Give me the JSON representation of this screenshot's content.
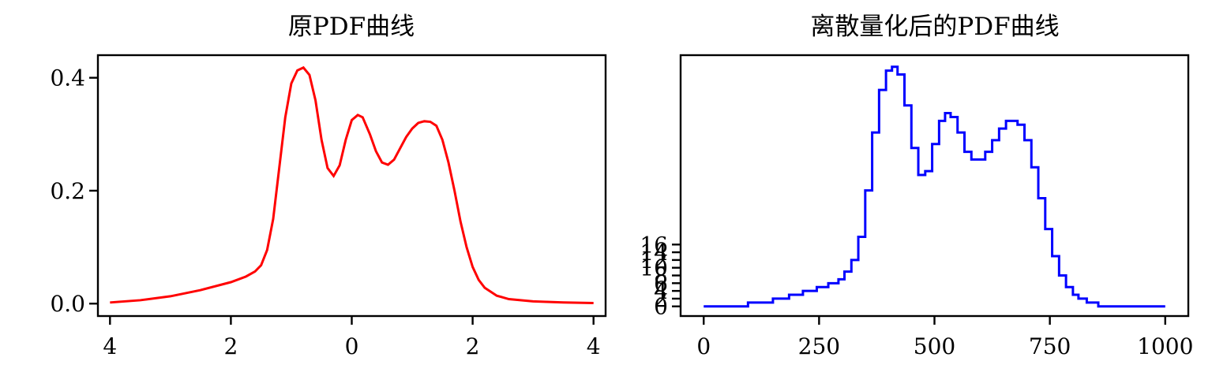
{
  "chart_data": [
    {
      "type": "line",
      "title": "原PDF曲线",
      "line_color": "#ff0000",
      "xlim": [
        -4.2,
        4.2
      ],
      "ylim": [
        -0.022,
        0.44
      ],
      "x_ticks": [
        -4,
        -2,
        0,
        2,
        4
      ],
      "x_tick_labels": [
        "4",
        "2",
        "0",
        "2",
        "4"
      ],
      "y_ticks": [
        0.0,
        0.2,
        0.4
      ],
      "y_tick_labels": [
        "0.0",
        "0.2",
        "0.4"
      ],
      "grid": false,
      "series": [
        {
          "x": [
            -4.0,
            -3.5,
            -3.0,
            -2.5,
            -2.0,
            -1.75,
            -1.6,
            -1.5,
            -1.4,
            -1.3,
            -1.2,
            -1.1,
            -1.0,
            -0.9,
            -0.8,
            -0.7,
            -0.6,
            -0.5,
            -0.4,
            -0.3,
            -0.2,
            -0.1,
            0.0,
            0.1,
            0.18,
            0.3,
            0.4,
            0.5,
            0.6,
            0.7,
            0.8,
            0.9,
            1.0,
            1.1,
            1.2,
            1.3,
            1.4,
            1.5,
            1.6,
            1.7,
            1.8,
            1.9,
            2.0,
            2.1,
            2.2,
            2.4,
            2.6,
            3.0,
            3.5,
            4.0
          ],
          "y": [
            0.002,
            0.006,
            0.013,
            0.024,
            0.038,
            0.048,
            0.057,
            0.068,
            0.095,
            0.15,
            0.24,
            0.33,
            0.39,
            0.413,
            0.418,
            0.405,
            0.36,
            0.29,
            0.24,
            0.226,
            0.245,
            0.29,
            0.325,
            0.334,
            0.33,
            0.3,
            0.27,
            0.25,
            0.246,
            0.255,
            0.275,
            0.295,
            0.31,
            0.32,
            0.323,
            0.322,
            0.315,
            0.29,
            0.25,
            0.2,
            0.145,
            0.1,
            0.065,
            0.042,
            0.028,
            0.014,
            0.008,
            0.004,
            0.002,
            0.001
          ]
        }
      ]
    },
    {
      "type": "line",
      "title": "离散量化后的PDF曲线",
      "line_color": "#0000ff",
      "xlim": [
        -50,
        1050
      ],
      "ylim": [
        -2.5,
        65
      ],
      "x_ticks": [
        0,
        250,
        500,
        750,
        1000
      ],
      "x_tick_labels": [
        "0",
        "250",
        "500",
        "750",
        "1000"
      ],
      "y_ticks": [
        0,
        2,
        4,
        6,
        8,
        10,
        12,
        14,
        16
      ],
      "y_tick_labels": [
        "0",
        "2",
        "4",
        "6",
        "8",
        "10",
        "12",
        "14",
        "16"
      ],
      "grid": false,
      "series": [
        {
          "x": [
            0,
            96,
            150,
            185,
            215,
            245,
            270,
            292,
            305,
            320,
            335,
            350,
            365,
            380,
            395,
            408,
            420,
            435,
            450,
            465,
            480,
            495,
            510,
            523,
            535,
            550,
            565,
            580,
            595,
            610,
            625,
            640,
            655,
            668,
            680,
            695,
            710,
            725,
            740,
            755,
            770,
            785,
            800,
            812,
            830,
            855,
            1000
          ],
          "y": [
            0,
            1,
            2,
            3,
            4,
            5,
            6,
            7,
            9,
            12,
            18,
            30,
            45,
            56,
            61,
            62,
            60,
            52,
            41,
            34,
            35,
            42,
            48,
            50,
            49,
            45,
            40,
            38,
            38,
            40,
            43,
            46,
            48,
            48,
            47,
            43,
            36,
            28,
            20,
            13,
            8,
            5,
            3,
            2,
            1,
            0,
            0
          ]
        }
      ]
    }
  ]
}
